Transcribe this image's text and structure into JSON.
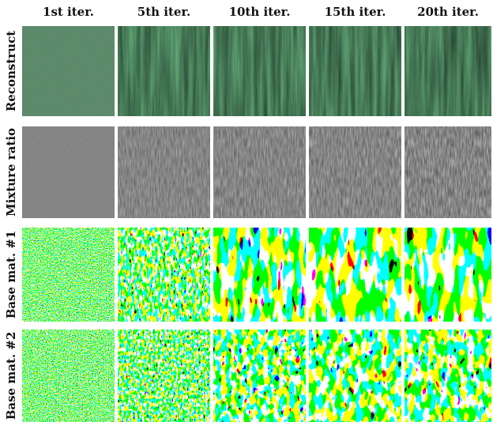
{
  "columns": [
    "1st iter.",
    "5th iter.",
    "10th iter.",
    "15th iter.",
    "20th iter."
  ],
  "rows": [
    {
      "label": "Reconstruct"
    },
    {
      "label": "Mixture ratio"
    },
    {
      "label": "Base mat. #1"
    },
    {
      "label": "Base mat. #2"
    }
  ]
}
